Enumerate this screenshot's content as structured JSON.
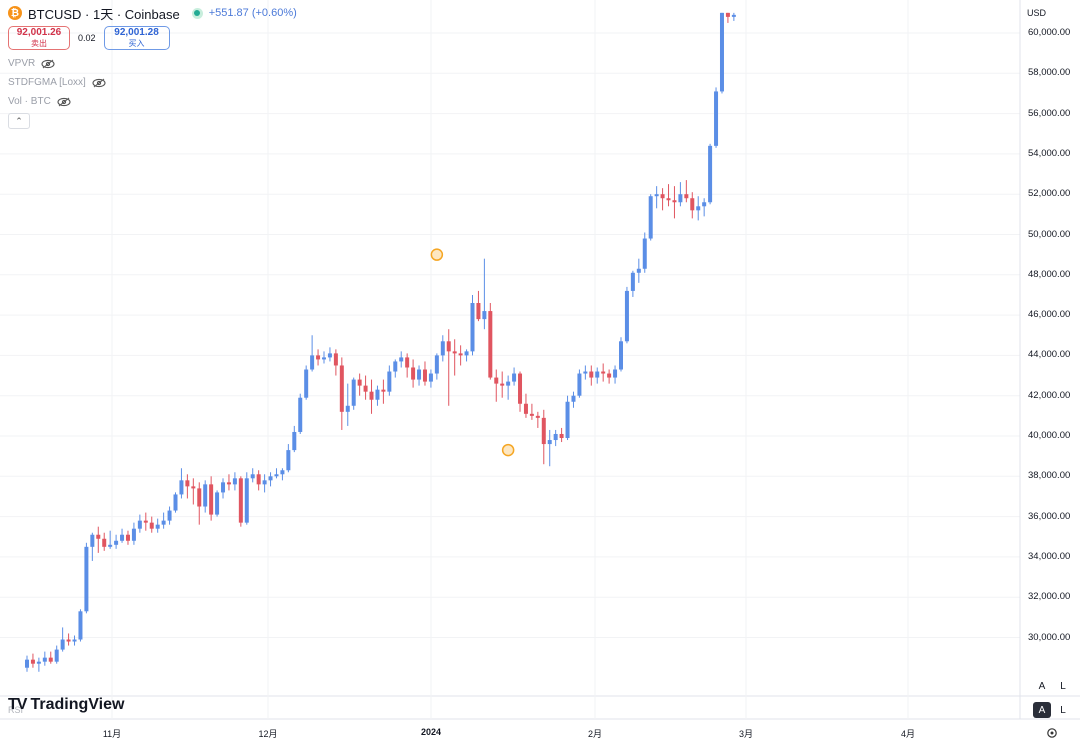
{
  "header": {
    "symbol_title": "BTCUSD · 1天 · Coinbase",
    "change_text": "+551.87 (+0.60%)",
    "btc_icon_glyph": "₿",
    "sell": {
      "price": "92,001.26",
      "label": "卖出"
    },
    "spread": "0.02",
    "buy": {
      "price": "92,001.28",
      "label": "买入"
    }
  },
  "indicators": [
    {
      "label": "VPVR"
    },
    {
      "label": "STDFGMA [Loxx]"
    },
    {
      "label": "Vol · BTC"
    }
  ],
  "collapse_glyph": "⌃",
  "price_axis": {
    "currency": "USD",
    "labels": [
      "60,000.00",
      "58,000.00",
      "56,000.00",
      "54,000.00",
      "52,000.00",
      "50,000.00",
      "48,000.00",
      "46,000.00",
      "44,000.00",
      "42,000.00",
      "40,000.00",
      "38,000.00",
      "36,000.00",
      "34,000.00",
      "32,000.00",
      "30,000.00"
    ]
  },
  "time_axis": {
    "labels": [
      {
        "text": "11月",
        "bold": false
      },
      {
        "text": "12月",
        "bold": false
      },
      {
        "text": "2024",
        "bold": true
      },
      {
        "text": "2月",
        "bold": false
      },
      {
        "text": "3月",
        "bold": false
      },
      {
        "text": "4月",
        "bold": false
      }
    ]
  },
  "logo": {
    "mark": "TV",
    "text": "TradingView"
  },
  "rsi_label": "RSI",
  "scale_buttons": {
    "auto": "A",
    "log": "L"
  },
  "colors": {
    "up": "#5b8ee6",
    "down": "#e05560",
    "marker": "#f5a623",
    "grid": "#f2f3f5"
  },
  "chart_data": {
    "type": "candlestick",
    "series_name": "BTCUSD",
    "interval": "1D",
    "y_range": [
      28000,
      61000
    ],
    "grid": true,
    "markers": [
      {
        "x_index": 69,
        "price": 49000
      },
      {
        "x_index": 81,
        "price": 39300
      }
    ],
    "candles": [
      [
        28500,
        29100,
        28300,
        28900
      ],
      [
        28900,
        29200,
        28500,
        28700
      ],
      [
        28700,
        29000,
        28300,
        28800
      ],
      [
        28800,
        29300,
        28600,
        29000
      ],
      [
        29000,
        29300,
        28700,
        28800
      ],
      [
        28800,
        29600,
        28700,
        29400
      ],
      [
        29400,
        30500,
        29300,
        29900
      ],
      [
        29900,
        30200,
        29600,
        29800
      ],
      [
        29800,
        30100,
        29600,
        29900
      ],
      [
        29900,
        31400,
        29800,
        31300
      ],
      [
        31300,
        34700,
        31200,
        34500
      ],
      [
        34500,
        35200,
        33800,
        35100
      ],
      [
        35100,
        35500,
        34200,
        34900
      ],
      [
        34900,
        35200,
        34300,
        34500
      ],
      [
        34500,
        35300,
        34400,
        34600
      ],
      [
        34600,
        35100,
        34400,
        34800
      ],
      [
        34800,
        35400,
        34700,
        35100
      ],
      [
        35100,
        35300,
        34600,
        34800
      ],
      [
        34800,
        35700,
        34600,
        35400
      ],
      [
        35400,
        36100,
        35200,
        35800
      ],
      [
        35800,
        36200,
        35300,
        35700
      ],
      [
        35700,
        36000,
        35200,
        35400
      ],
      [
        35400,
        35900,
        35200,
        35600
      ],
      [
        35600,
        36200,
        35400,
        35800
      ],
      [
        35800,
        36500,
        35600,
        36300
      ],
      [
        36300,
        37200,
        36200,
        37100
      ],
      [
        37100,
        38400,
        36900,
        37800
      ],
      [
        37800,
        38100,
        36900,
        37500
      ],
      [
        37500,
        37900,
        36600,
        37400
      ],
      [
        37400,
        37700,
        35600,
        36500
      ],
      [
        36500,
        37800,
        36200,
        37600
      ],
      [
        37600,
        38000,
        35800,
        36100
      ],
      [
        36100,
        37300,
        36000,
        37200
      ],
      [
        37200,
        37900,
        36900,
        37700
      ],
      [
        37700,
        38100,
        37300,
        37600
      ],
      [
        37600,
        38200,
        37300,
        37900
      ],
      [
        37900,
        38000,
        35500,
        35700
      ],
      [
        35700,
        38200,
        35600,
        37900
      ],
      [
        37900,
        38400,
        37700,
        38100
      ],
      [
        38100,
        38300,
        37300,
        37600
      ],
      [
        37600,
        38100,
        37200,
        37800
      ],
      [
        37800,
        38200,
        37500,
        38000
      ],
      [
        38000,
        38400,
        37900,
        38100
      ],
      [
        38100,
        38400,
        37800,
        38300
      ],
      [
        38300,
        39600,
        38200,
        39300
      ],
      [
        39300,
        40500,
        39200,
        40200
      ],
      [
        40200,
        42100,
        40100,
        41900
      ],
      [
        41900,
        43500,
        41800,
        43300
      ],
      [
        43300,
        45000,
        43200,
        44000
      ],
      [
        44000,
        44300,
        43500,
        43800
      ],
      [
        43800,
        44200,
        43600,
        43900
      ],
      [
        43900,
        44400,
        43700,
        44100
      ],
      [
        44100,
        44300,
        43000,
        43500
      ],
      [
        43500,
        43900,
        40300,
        41200
      ],
      [
        41200,
        42600,
        40500,
        41500
      ],
      [
        41500,
        42900,
        41300,
        42800
      ],
      [
        42800,
        43100,
        42000,
        42500
      ],
      [
        42500,
        43000,
        41800,
        42200
      ],
      [
        42200,
        42800,
        41100,
        41800
      ],
      [
        41800,
        42500,
        41500,
        42300
      ],
      [
        42300,
        42800,
        41600,
        42200
      ],
      [
        42200,
        43500,
        42000,
        43200
      ],
      [
        43200,
        43800,
        42900,
        43700
      ],
      [
        43700,
        44200,
        43400,
        43900
      ],
      [
        43900,
        44100,
        42900,
        43400
      ],
      [
        43400,
        43800,
        42400,
        42800
      ],
      [
        42800,
        43500,
        42500,
        43300
      ],
      [
        43300,
        43700,
        42500,
        42700
      ],
      [
        42700,
        43300,
        42400,
        43100
      ],
      [
        43100,
        44100,
        42800,
        44000
      ],
      [
        44000,
        45000,
        43700,
        44700
      ],
      [
        44700,
        45300,
        41500,
        44200
      ],
      [
        44200,
        44800,
        43000,
        44100
      ],
      [
        44100,
        44500,
        43500,
        44000
      ],
      [
        44000,
        44300,
        43700,
        44200
      ],
      [
        44200,
        47000,
        44000,
        46600
      ],
      [
        46600,
        47200,
        45700,
        45800
      ],
      [
        45800,
        48800,
        45300,
        46200
      ],
      [
        46200,
        46600,
        42800,
        42900
      ],
      [
        42900,
        43300,
        41700,
        42600
      ],
      [
        42600,
        43200,
        41900,
        42500
      ],
      [
        42500,
        43000,
        41800,
        42700
      ],
      [
        42700,
        43400,
        42500,
        43100
      ],
      [
        43100,
        43200,
        41200,
        41600
      ],
      [
        41600,
        42100,
        40900,
        41100
      ],
      [
        41100,
        41600,
        40800,
        41000
      ],
      [
        41000,
        41200,
        40400,
        40900
      ],
      [
        40900,
        41300,
        38600,
        39600
      ],
      [
        39600,
        40300,
        38500,
        39800
      ],
      [
        39800,
        40300,
        39500,
        40100
      ],
      [
        40100,
        40400,
        39700,
        39900
      ],
      [
        39900,
        42000,
        39800,
        41700
      ],
      [
        41700,
        42200,
        41400,
        42000
      ],
      [
        42000,
        43300,
        41900,
        43100
      ],
      [
        43100,
        43500,
        42800,
        43200
      ],
      [
        43200,
        43500,
        42500,
        42900
      ],
      [
        42900,
        43400,
        42600,
        43200
      ],
      [
        43200,
        43600,
        42700,
        43100
      ],
      [
        43100,
        43300,
        42600,
        42900
      ],
      [
        42900,
        43500,
        42600,
        43300
      ],
      [
        43300,
        44900,
        43200,
        44700
      ],
      [
        44700,
        47400,
        44600,
        47200
      ],
      [
        47200,
        48200,
        46900,
        48100
      ],
      [
        48100,
        48800,
        47600,
        48300
      ],
      [
        48300,
        50100,
        48100,
        49800
      ],
      [
        49800,
        52000,
        49700,
        51900
      ],
      [
        51900,
        52400,
        51300,
        52000
      ],
      [
        52000,
        52300,
        51200,
        51800
      ],
      [
        51800,
        52500,
        51400,
        51700
      ],
      [
        51700,
        52400,
        50800,
        51600
      ],
      [
        51600,
        52600,
        51400,
        52000
      ],
      [
        52000,
        52700,
        51600,
        51800
      ],
      [
        51800,
        52100,
        50800,
        51200
      ],
      [
        51200,
        51900,
        50700,
        51400
      ],
      [
        51400,
        51800,
        50900,
        51600
      ],
      [
        51600,
        54500,
        51500,
        54400
      ],
      [
        54400,
        57300,
        54300,
        57100
      ],
      [
        57100,
        61000,
        57000,
        61000
      ],
      [
        61000,
        61000,
        60500,
        60800
      ],
      [
        60800,
        61000,
        60600,
        60900
      ]
    ]
  }
}
